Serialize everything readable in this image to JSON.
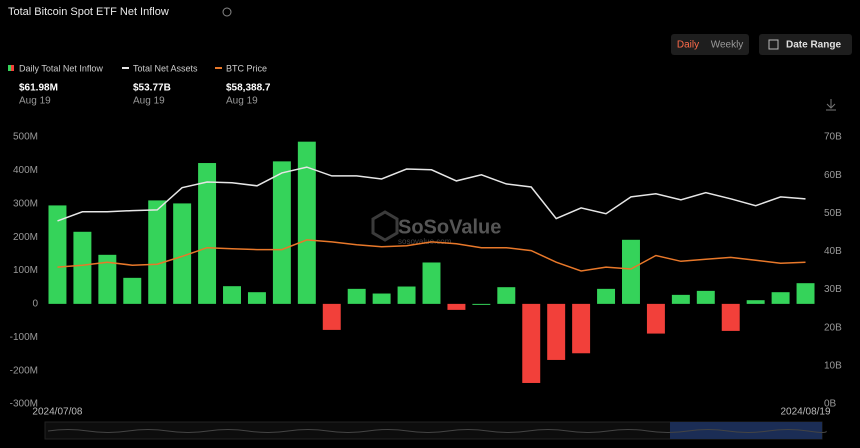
{
  "header": {
    "title": "Total Bitcoin Spot ETF Net Inflow",
    "toggle": [
      "Daily",
      "Weekly"
    ],
    "active_toggle": 0,
    "date_range": "Date Range"
  },
  "chart_data": {
    "type": "bar",
    "categories": [
      "2024/07/08",
      null,
      null,
      null,
      null,
      null,
      null,
      null,
      null,
      null,
      null,
      null,
      null,
      null,
      null,
      null,
      null,
      null,
      null,
      null,
      null,
      null,
      null,
      null,
      null,
      null,
      null,
      null,
      null,
      null,
      "2024/08/19"
    ],
    "ylim": [
      -300,
      500
    ],
    "yticks": [
      {
        "value": -300,
        "label": "-300M"
      },
      {
        "value": -200,
        "label": "-200M"
      },
      {
        "value": -100,
        "label": "-100M"
      },
      0,
      {
        "value": 100,
        "label": "100M"
      },
      {
        "value": 200,
        "label": "200M"
      },
      {
        "value": 300,
        "label": "300M"
      },
      {
        "value": 400,
        "label": "400M"
      },
      {
        "value": 500,
        "label": "500M"
      }
    ],
    "y2lim": [
      0,
      70
    ],
    "y2ticks": [
      {
        "value": 0,
        "label": "0B"
      },
      {
        "value": 10,
        "label": "10B"
      },
      {
        "value": 20,
        "label": "20B"
      },
      {
        "value": 30,
        "label": "30B"
      },
      {
        "value": 40,
        "label": "40B"
      },
      {
        "value": 50,
        "label": "50B"
      },
      {
        "value": 60,
        "label": "60B"
      },
      {
        "value": 70,
        "label": "70B"
      }
    ],
    "y3lim": [
      0,
      110000
    ],
    "grid": false,
    "watermark": [
      "SoSoValue",
      "sosovalue.com"
    ],
    "series": [
      {
        "name": "Daily Total Net Inflow",
        "type": "bar",
        "color": "#35d35a",
        "negative_color": "#f2403a",
        "current": {
          "label": "$61.98M",
          "date": "Aug 19"
        },
        "values": [
          295,
          216,
          147,
          78,
          310,
          301,
          422,
          53,
          35,
          427,
          486,
          -78,
          45,
          31,
          52,
          124,
          -18,
          0,
          50,
          -237,
          -168,
          -148,
          45,
          192,
          -89,
          27,
          39,
          -81,
          11,
          35,
          61.98
        ]
      },
      {
        "name": "Total Net Assets",
        "type": "line",
        "axis": "y2",
        "color": "#e6e6e6",
        "current": {
          "label": "$53.77B",
          "date": "Aug 19"
        },
        "values": [
          48.0,
          50.4,
          50.4,
          50.7,
          50.9,
          56.7,
          58.2,
          58.0,
          57.2,
          60.6,
          62.1,
          59.8,
          59.8,
          59.0,
          61.6,
          61.4,
          58.5,
          60.1,
          57.7,
          56.9,
          48.6,
          51.4,
          49.9,
          54.3,
          55.1,
          53.5,
          55.4,
          53.8,
          52.0,
          54.3,
          53.77
        ]
      },
      {
        "name": "BTC Price",
        "type": "line",
        "axis": "y3",
        "color": "#e8782a",
        "current": {
          "label": "$58,388.7",
          "date": "Aug 19"
        },
        "values": [
          56400,
          57200,
          58400,
          57200,
          57600,
          60800,
          64400,
          64000,
          63600,
          63600,
          67600,
          66800,
          65600,
          64800,
          65200,
          66800,
          66000,
          64400,
          64400,
          63200,
          58400,
          54800,
          56400,
          55600,
          61200,
          58800,
          59600,
          60400,
          59200,
          58000,
          58388.7
        ]
      }
    ]
  }
}
